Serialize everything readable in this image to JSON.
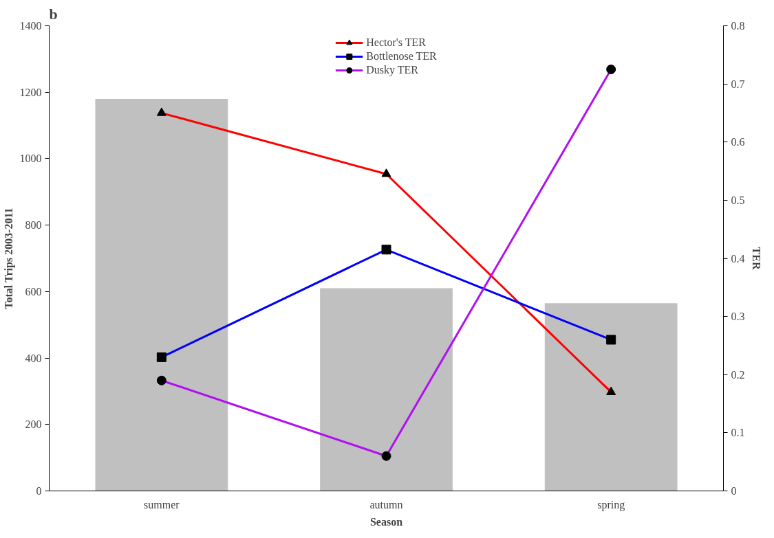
{
  "chart_data": {
    "type": "bar",
    "title": "b",
    "xlabel": "Season",
    "ylabel": "Total Trips 2003-2011",
    "y2label": "TER",
    "categories": [
      "summer",
      "autumn",
      "spring"
    ],
    "series": [
      {
        "color": "#c0c0c0",
        "values": [
          1180,
          610,
          565
        ]
      },
      {
        "type": "line",
        "name": "Hector's TER",
        "color": "#ff0000",
        "marker": "triangle",
        "axis": "y2",
        "values": [
          0.65,
          0.545,
          0.17
        ]
      },
      {
        "type": "line",
        "name": "Bottlenose TER",
        "color": "#0000ff",
        "marker": "square",
        "axis": "y2",
        "values": [
          0.23,
          0.415,
          0.26
        ]
      },
      {
        "type": "line",
        "name": "Dusky TER",
        "color": "#b010f0",
        "marker": "circle",
        "axis": "y2",
        "values": [
          0.19,
          0.06,
          0.725
        ]
      }
    ],
    "ylim": [
      0,
      1400
    ],
    "yticks": [
      0,
      200,
      400,
      600,
      800,
      1000,
      1200,
      1400
    ],
    "y2lim": [
      0,
      0.8
    ],
    "y2ticks": [
      0,
      0.1,
      0.2,
      0.3,
      0.4,
      0.5,
      0.6,
      0.7,
      0.8
    ],
    "grid": false,
    "legend": "top"
  }
}
